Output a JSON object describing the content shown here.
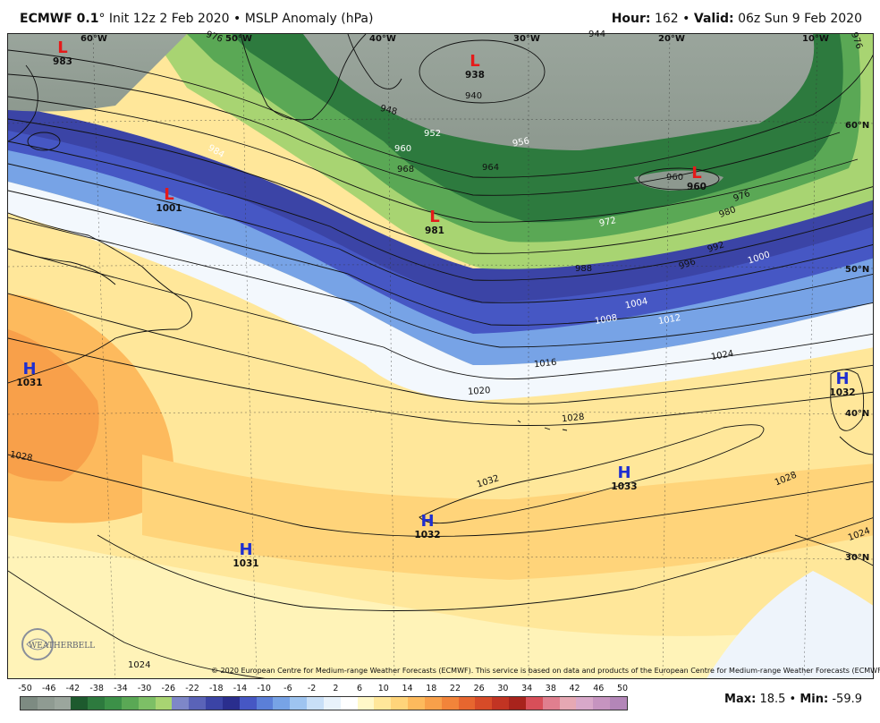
{
  "header": {
    "model": "ECMWF 0.1",
    "degree": "°",
    "init": "Init 12z 2 Feb 2020",
    "bullet": "•",
    "field": "MSLP Anomaly (hPa)",
    "hour_label": "Hour:",
    "hour_value": "162",
    "valid_label": "Valid:",
    "valid_value": "06z Sun 9 Feb 2020"
  },
  "copyright": "© 2020 European Centre for Medium-range Weather Forecasts (ECMWF). This service is based on data and products of the European Centre for Medium-range Weather Forecasts (ECMWF).",
  "logo_text": "WEATHERBELL",
  "longitude_labels": [
    "60°W",
    "50°W",
    "40°W",
    "30°W",
    "20°W",
    "10°W"
  ],
  "latitude_labels": [
    "60°N",
    "50°N",
    "40°N",
    "30°N"
  ],
  "pressure_centers": [
    {
      "type": "L",
      "value": "983"
    },
    {
      "type": "L",
      "value": "938"
    },
    {
      "type": "L",
      "value": "1001"
    },
    {
      "type": "L",
      "value": "981"
    },
    {
      "type": "L",
      "value": "960"
    },
    {
      "type": "H",
      "value": "1031"
    },
    {
      "type": "H",
      "value": "1032"
    },
    {
      "type": "H",
      "value": "1033"
    },
    {
      "type": "H",
      "value": "1032"
    },
    {
      "type": "H",
      "value": "1031"
    }
  ],
  "isobar_labels": [
    "948",
    "952",
    "956",
    "960",
    "964",
    "968",
    "972",
    "976",
    "980",
    "984",
    "988",
    "992",
    "996",
    "1000",
    "1004",
    "1008",
    "1012",
    "1016",
    "1020",
    "1024",
    "1028",
    "1032",
    "940",
    "960",
    "1028",
    "1024",
    "1032",
    "1028",
    "1024",
    "1020",
    "976",
    "944"
  ],
  "legend": {
    "ticks": [
      "-50",
      "-46",
      "-42",
      "-38",
      "-34",
      "-30",
      "-26",
      "-22",
      "-18",
      "-14",
      "-10",
      "-6",
      "-2",
      "2",
      "6",
      "10",
      "14",
      "18",
      "22",
      "26",
      "30",
      "34",
      "38",
      "42",
      "46",
      "50"
    ],
    "colors": [
      "#7d8b82",
      "#8f9b92",
      "#9ba69d",
      "#1d5a2e",
      "#2d7a3e",
      "#3c9148",
      "#5aa855",
      "#7dbf66",
      "#a8d472",
      "#7e87c8",
      "#5a63b8",
      "#3b44a6",
      "#2a2e8e",
      "#4657c4",
      "#5b7fd8",
      "#77a3e6",
      "#9ec4f0",
      "#c8dff7",
      "#e8f2fb",
      "#ffffff",
      "#fff8c8",
      "#ffe79a",
      "#ffd47a",
      "#fdba5d",
      "#f8a04a",
      "#f2843a",
      "#e7662f",
      "#d74b28",
      "#c23423",
      "#a8231c",
      "#d84f59",
      "#e07f8f",
      "#e6a8b3",
      "#d8a8c9",
      "#c694c0",
      "#b386b8"
    ],
    "max_label": "Max:",
    "max_value": "18.5",
    "min_label": "Min:",
    "min_value": "-59.9"
  }
}
